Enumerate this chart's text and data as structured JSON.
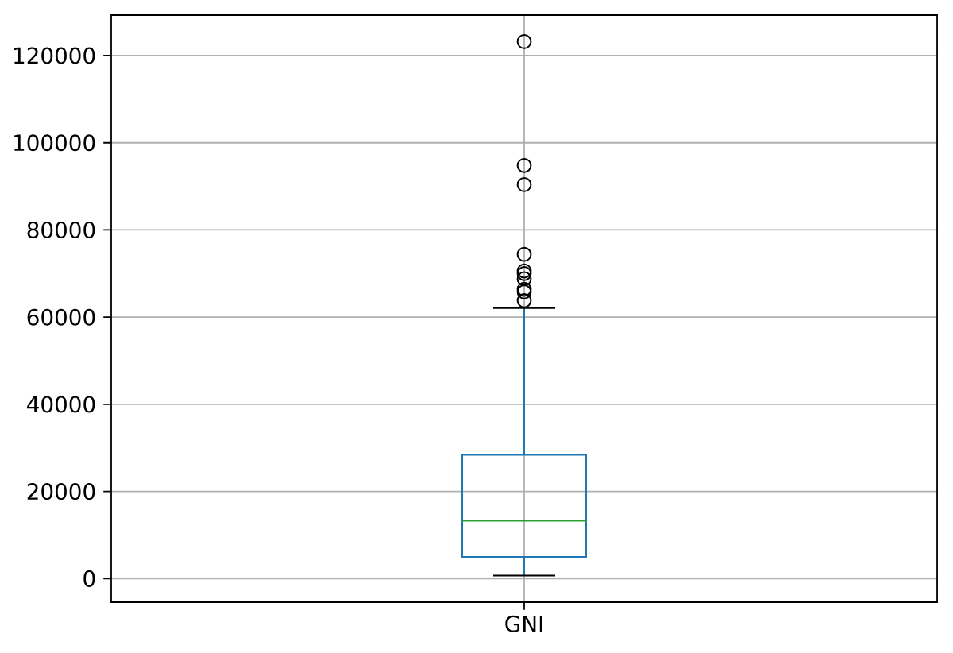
{
  "chart_data": {
    "type": "box",
    "categories": [
      "GNI"
    ],
    "boxes": [
      {
        "low": 700,
        "q1": 5000,
        "median": 13300,
        "q3": 28400,
        "high": 62100,
        "outliers": [
          63800,
          65800,
          66400,
          68800,
          70000,
          70600,
          74400,
          90400,
          94800,
          123200
        ]
      }
    ],
    "color": "#1f77b4",
    "ylim": [
      -5400,
      129300
    ],
    "yticks": [
      0,
      20000,
      40000,
      60000,
      80000,
      100000,
      120000
    ],
    "grid": true
  }
}
